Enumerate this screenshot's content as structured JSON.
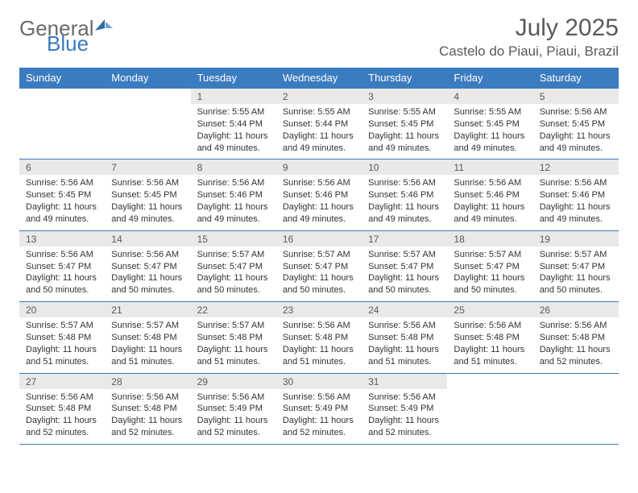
{
  "logo": {
    "general": "General",
    "blue": "Blue"
  },
  "title": "July 2025",
  "location": "Castelo do Piaui, Piaui, Brazil",
  "day_headers": [
    "Sunday",
    "Monday",
    "Tuesday",
    "Wednesday",
    "Thursday",
    "Friday",
    "Saturday"
  ],
  "colors": {
    "header_bg": "#3b7bbf",
    "header_text": "#ffffff",
    "daynum_bg": "#e9e9e9",
    "text": "#333333",
    "border": "#3b7bbf"
  },
  "weeks": [
    {
      "nums": [
        "",
        "",
        "1",
        "2",
        "3",
        "4",
        "5"
      ],
      "details": [
        {
          "empty": true
        },
        {
          "empty": true
        },
        {
          "sunrise": "Sunrise: 5:55 AM",
          "sunset": "Sunset: 5:44 PM",
          "day1": "Daylight: 11 hours",
          "day2": "and 49 minutes."
        },
        {
          "sunrise": "Sunrise: 5:55 AM",
          "sunset": "Sunset: 5:44 PM",
          "day1": "Daylight: 11 hours",
          "day2": "and 49 minutes."
        },
        {
          "sunrise": "Sunrise: 5:55 AM",
          "sunset": "Sunset: 5:45 PM",
          "day1": "Daylight: 11 hours",
          "day2": "and 49 minutes."
        },
        {
          "sunrise": "Sunrise: 5:55 AM",
          "sunset": "Sunset: 5:45 PM",
          "day1": "Daylight: 11 hours",
          "day2": "and 49 minutes."
        },
        {
          "sunrise": "Sunrise: 5:56 AM",
          "sunset": "Sunset: 5:45 PM",
          "day1": "Daylight: 11 hours",
          "day2": "and 49 minutes."
        }
      ]
    },
    {
      "nums": [
        "6",
        "7",
        "8",
        "9",
        "10",
        "11",
        "12"
      ],
      "details": [
        {
          "sunrise": "Sunrise: 5:56 AM",
          "sunset": "Sunset: 5:45 PM",
          "day1": "Daylight: 11 hours",
          "day2": "and 49 minutes."
        },
        {
          "sunrise": "Sunrise: 5:56 AM",
          "sunset": "Sunset: 5:45 PM",
          "day1": "Daylight: 11 hours",
          "day2": "and 49 minutes."
        },
        {
          "sunrise": "Sunrise: 5:56 AM",
          "sunset": "Sunset: 5:46 PM",
          "day1": "Daylight: 11 hours",
          "day2": "and 49 minutes."
        },
        {
          "sunrise": "Sunrise: 5:56 AM",
          "sunset": "Sunset: 5:46 PM",
          "day1": "Daylight: 11 hours",
          "day2": "and 49 minutes."
        },
        {
          "sunrise": "Sunrise: 5:56 AM",
          "sunset": "Sunset: 5:46 PM",
          "day1": "Daylight: 11 hours",
          "day2": "and 49 minutes."
        },
        {
          "sunrise": "Sunrise: 5:56 AM",
          "sunset": "Sunset: 5:46 PM",
          "day1": "Daylight: 11 hours",
          "day2": "and 49 minutes."
        },
        {
          "sunrise": "Sunrise: 5:56 AM",
          "sunset": "Sunset: 5:46 PM",
          "day1": "Daylight: 11 hours",
          "day2": "and 49 minutes."
        }
      ]
    },
    {
      "nums": [
        "13",
        "14",
        "15",
        "16",
        "17",
        "18",
        "19"
      ],
      "details": [
        {
          "sunrise": "Sunrise: 5:56 AM",
          "sunset": "Sunset: 5:47 PM",
          "day1": "Daylight: 11 hours",
          "day2": "and 50 minutes."
        },
        {
          "sunrise": "Sunrise: 5:56 AM",
          "sunset": "Sunset: 5:47 PM",
          "day1": "Daylight: 11 hours",
          "day2": "and 50 minutes."
        },
        {
          "sunrise": "Sunrise: 5:57 AM",
          "sunset": "Sunset: 5:47 PM",
          "day1": "Daylight: 11 hours",
          "day2": "and 50 minutes."
        },
        {
          "sunrise": "Sunrise: 5:57 AM",
          "sunset": "Sunset: 5:47 PM",
          "day1": "Daylight: 11 hours",
          "day2": "and 50 minutes."
        },
        {
          "sunrise": "Sunrise: 5:57 AM",
          "sunset": "Sunset: 5:47 PM",
          "day1": "Daylight: 11 hours",
          "day2": "and 50 minutes."
        },
        {
          "sunrise": "Sunrise: 5:57 AM",
          "sunset": "Sunset: 5:47 PM",
          "day1": "Daylight: 11 hours",
          "day2": "and 50 minutes."
        },
        {
          "sunrise": "Sunrise: 5:57 AM",
          "sunset": "Sunset: 5:47 PM",
          "day1": "Daylight: 11 hours",
          "day2": "and 50 minutes."
        }
      ]
    },
    {
      "nums": [
        "20",
        "21",
        "22",
        "23",
        "24",
        "25",
        "26"
      ],
      "details": [
        {
          "sunrise": "Sunrise: 5:57 AM",
          "sunset": "Sunset: 5:48 PM",
          "day1": "Daylight: 11 hours",
          "day2": "and 51 minutes."
        },
        {
          "sunrise": "Sunrise: 5:57 AM",
          "sunset": "Sunset: 5:48 PM",
          "day1": "Daylight: 11 hours",
          "day2": "and 51 minutes."
        },
        {
          "sunrise": "Sunrise: 5:57 AM",
          "sunset": "Sunset: 5:48 PM",
          "day1": "Daylight: 11 hours",
          "day2": "and 51 minutes."
        },
        {
          "sunrise": "Sunrise: 5:56 AM",
          "sunset": "Sunset: 5:48 PM",
          "day1": "Daylight: 11 hours",
          "day2": "and 51 minutes."
        },
        {
          "sunrise": "Sunrise: 5:56 AM",
          "sunset": "Sunset: 5:48 PM",
          "day1": "Daylight: 11 hours",
          "day2": "and 51 minutes."
        },
        {
          "sunrise": "Sunrise: 5:56 AM",
          "sunset": "Sunset: 5:48 PM",
          "day1": "Daylight: 11 hours",
          "day2": "and 51 minutes."
        },
        {
          "sunrise": "Sunrise: 5:56 AM",
          "sunset": "Sunset: 5:48 PM",
          "day1": "Daylight: 11 hours",
          "day2": "and 52 minutes."
        }
      ]
    },
    {
      "nums": [
        "27",
        "28",
        "29",
        "30",
        "31",
        "",
        ""
      ],
      "details": [
        {
          "sunrise": "Sunrise: 5:56 AM",
          "sunset": "Sunset: 5:48 PM",
          "day1": "Daylight: 11 hours",
          "day2": "and 52 minutes."
        },
        {
          "sunrise": "Sunrise: 5:56 AM",
          "sunset": "Sunset: 5:48 PM",
          "day1": "Daylight: 11 hours",
          "day2": "and 52 minutes."
        },
        {
          "sunrise": "Sunrise: 5:56 AM",
          "sunset": "Sunset: 5:49 PM",
          "day1": "Daylight: 11 hours",
          "day2": "and 52 minutes."
        },
        {
          "sunrise": "Sunrise: 5:56 AM",
          "sunset": "Sunset: 5:49 PM",
          "day1": "Daylight: 11 hours",
          "day2": "and 52 minutes."
        },
        {
          "sunrise": "Sunrise: 5:56 AM",
          "sunset": "Sunset: 5:49 PM",
          "day1": "Daylight: 11 hours",
          "day2": "and 52 minutes."
        },
        {
          "empty": true
        },
        {
          "empty": true
        }
      ]
    }
  ]
}
